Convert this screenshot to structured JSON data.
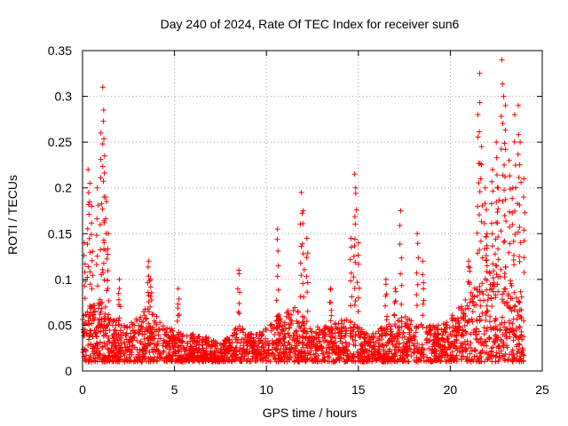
{
  "chart_data": {
    "type": "scatter",
    "title": "Day 240 of 2024, Rate Of TEC Index for receiver sun6",
    "xlabel": "GPS time / hours",
    "ylabel": "ROTI / TECUs",
    "xlim": [
      0,
      25
    ],
    "ylim": [
      0,
      0.35
    ],
    "x_ticks": [
      0,
      5,
      10,
      15,
      20,
      25
    ],
    "x_tick_labels": [
      "0",
      "5",
      "10",
      "15",
      "20",
      "25"
    ],
    "y_ticks": [
      0,
      0.05,
      0.1,
      0.15,
      0.2,
      0.25,
      0.3,
      0.35
    ],
    "y_tick_labels": [
      "0",
      "0.05",
      "0.1",
      "0.15",
      "0.2",
      "0.25",
      "0.3",
      "0.35"
    ],
    "grid": true,
    "marker": "+",
    "marker_color": "#ff0000",
    "series": [
      {
        "name": "ROTI",
        "envelope": {
          "x": [
            0,
            0.25,
            0.5,
            1.0,
            1.5,
            2.5,
            3.5,
            4.5,
            5.5,
            6.5,
            7.5,
            8.5,
            9.5,
            10.5,
            11.5,
            12.5,
            13.5,
            14.5,
            15.5,
            16.5,
            17.5,
            18.5,
            19.5,
            20.5,
            21.5,
            22.5,
            23.5,
            24.0
          ],
          "y": [
            0.06,
            0.08,
            0.07,
            0.08,
            0.06,
            0.05,
            0.07,
            0.05,
            0.04,
            0.04,
            0.03,
            0.05,
            0.04,
            0.06,
            0.07,
            0.05,
            0.05,
            0.06,
            0.04,
            0.05,
            0.06,
            0.05,
            0.05,
            0.07,
            0.1,
            0.13,
            0.1,
            0.09
          ]
        },
        "spikes": [
          {
            "x": 0.1,
            "y": 0.14
          },
          {
            "x": 0.3,
            "y": 0.22
          },
          {
            "x": 0.4,
            "y": 0.205
          },
          {
            "x": 0.5,
            "y": 0.18
          },
          {
            "x": 0.8,
            "y": 0.2
          },
          {
            "x": 1.0,
            "y": 0.26
          },
          {
            "x": 1.1,
            "y": 0.31
          },
          {
            "x": 1.15,
            "y": 0.285
          },
          {
            "x": 1.2,
            "y": 0.235
          },
          {
            "x": 1.3,
            "y": 0.185
          },
          {
            "x": 1.4,
            "y": 0.15
          },
          {
            "x": 2.0,
            "y": 0.1
          },
          {
            "x": 3.6,
            "y": 0.12
          },
          {
            "x": 3.7,
            "y": 0.1
          },
          {
            "x": 5.2,
            "y": 0.09
          },
          {
            "x": 8.5,
            "y": 0.11
          },
          {
            "x": 10.6,
            "y": 0.155
          },
          {
            "x": 11.9,
            "y": 0.195
          },
          {
            "x": 12.0,
            "y": 0.175
          },
          {
            "x": 12.2,
            "y": 0.145
          },
          {
            "x": 13.5,
            "y": 0.09
          },
          {
            "x": 14.6,
            "y": 0.145
          },
          {
            "x": 14.8,
            "y": 0.215
          },
          {
            "x": 14.85,
            "y": 0.2
          },
          {
            "x": 15.0,
            "y": 0.14
          },
          {
            "x": 16.5,
            "y": 0.1
          },
          {
            "x": 17.0,
            "y": 0.09
          },
          {
            "x": 17.3,
            "y": 0.175
          },
          {
            "x": 18.2,
            "y": 0.15
          },
          {
            "x": 18.5,
            "y": 0.12
          },
          {
            "x": 21.0,
            "y": 0.12
          },
          {
            "x": 21.5,
            "y": 0.28
          },
          {
            "x": 21.6,
            "y": 0.325
          },
          {
            "x": 21.7,
            "y": 0.245
          },
          {
            "x": 21.9,
            "y": 0.2
          },
          {
            "x": 22.0,
            "y": 0.15
          },
          {
            "x": 22.3,
            "y": 0.22
          },
          {
            "x": 22.5,
            "y": 0.25
          },
          {
            "x": 22.6,
            "y": 0.2
          },
          {
            "x": 22.8,
            "y": 0.34
          },
          {
            "x": 22.9,
            "y": 0.3
          },
          {
            "x": 23.0,
            "y": 0.29
          },
          {
            "x": 23.2,
            "y": 0.23
          },
          {
            "x": 23.4,
            "y": 0.2
          },
          {
            "x": 23.5,
            "y": 0.28
          },
          {
            "x": 23.7,
            "y": 0.29
          },
          {
            "x": 23.8,
            "y": 0.25
          },
          {
            "x": 24.0,
            "y": 0.21
          }
        ]
      }
    ]
  }
}
